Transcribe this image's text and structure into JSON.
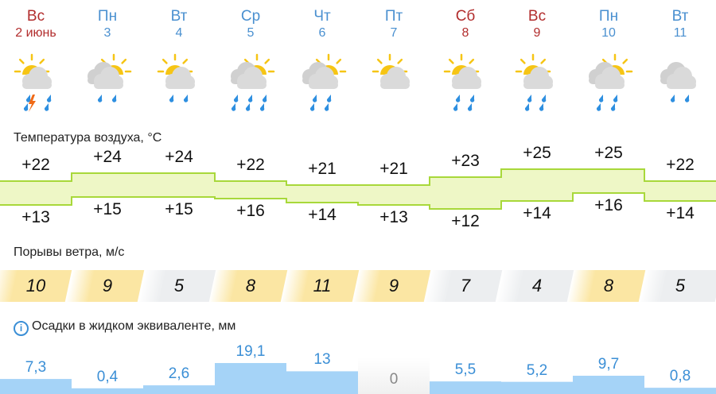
{
  "colors": {
    "weekday": "#4a90d0",
    "weekend": "#b22d2d",
    "band_fill": "#eef7c6",
    "band_line": "#a8d83a",
    "wind_strong": "#fbe6a3",
    "wind_weak": "#eceef0",
    "precip": "#a5d3f7",
    "precip_text": "#3b8fd6"
  },
  "days": [
    {
      "name": "Вс",
      "date": "2 июнь",
      "weekend": true,
      "icon": {
        "sun": true,
        "clouds": 1,
        "drops": 4,
        "thunder": true
      }
    },
    {
      "name": "Пн",
      "date": "3",
      "weekend": false,
      "icon": {
        "sun": true,
        "clouds": 2,
        "drops": 2,
        "thunder": false
      }
    },
    {
      "name": "Вт",
      "date": "4",
      "weekend": false,
      "icon": {
        "sun": true,
        "clouds": 1,
        "drops": 2,
        "thunder": false
      }
    },
    {
      "name": "Ср",
      "date": "5",
      "weekend": false,
      "icon": {
        "sun": true,
        "clouds": 2,
        "drops": 6,
        "thunder": false
      }
    },
    {
      "name": "Чт",
      "date": "6",
      "weekend": false,
      "icon": {
        "sun": true,
        "clouds": 2,
        "drops": 4,
        "thunder": false
      }
    },
    {
      "name": "Пт",
      "date": "7",
      "weekend": false,
      "icon": {
        "sun": true,
        "clouds": 1,
        "drops": 0,
        "thunder": false
      }
    },
    {
      "name": "Сб",
      "date": "8",
      "weekend": true,
      "icon": {
        "sun": true,
        "clouds": 1,
        "drops": 4,
        "thunder": false
      }
    },
    {
      "name": "Вс",
      "date": "9",
      "weekend": true,
      "icon": {
        "sun": true,
        "clouds": 1,
        "drops": 4,
        "thunder": false
      }
    },
    {
      "name": "Пн",
      "date": "10",
      "weekend": false,
      "icon": {
        "sun": true,
        "clouds": 2,
        "drops": 4,
        "thunder": false
      }
    },
    {
      "name": "Вт",
      "date": "11",
      "weekend": false,
      "icon": {
        "sun": false,
        "clouds": 2,
        "drops": 2,
        "thunder": false
      }
    }
  ],
  "temperature": {
    "title": "Температура воздуха, °C",
    "max": [
      "+22",
      "+24",
      "+24",
      "+22",
      "+21",
      "+21",
      "+23",
      "+25",
      "+25",
      "+22"
    ],
    "min": [
      "+13",
      "+15",
      "+15",
      "+16",
      "+14",
      "+13",
      "+12",
      "+14",
      "+16",
      "+14"
    ]
  },
  "wind": {
    "title": "Порывы ветра, м/с",
    "values": [
      "10",
      "9",
      "5",
      "8",
      "11",
      "9",
      "7",
      "4",
      "8",
      "5"
    ]
  },
  "precipitation": {
    "title": "Осадки в жидком эквиваленте, мм",
    "values": [
      "7,3",
      "0,4",
      "2,6",
      "19,1",
      "13",
      "0",
      "5,5",
      "5,2",
      "9,7",
      "0,8"
    ]
  }
}
